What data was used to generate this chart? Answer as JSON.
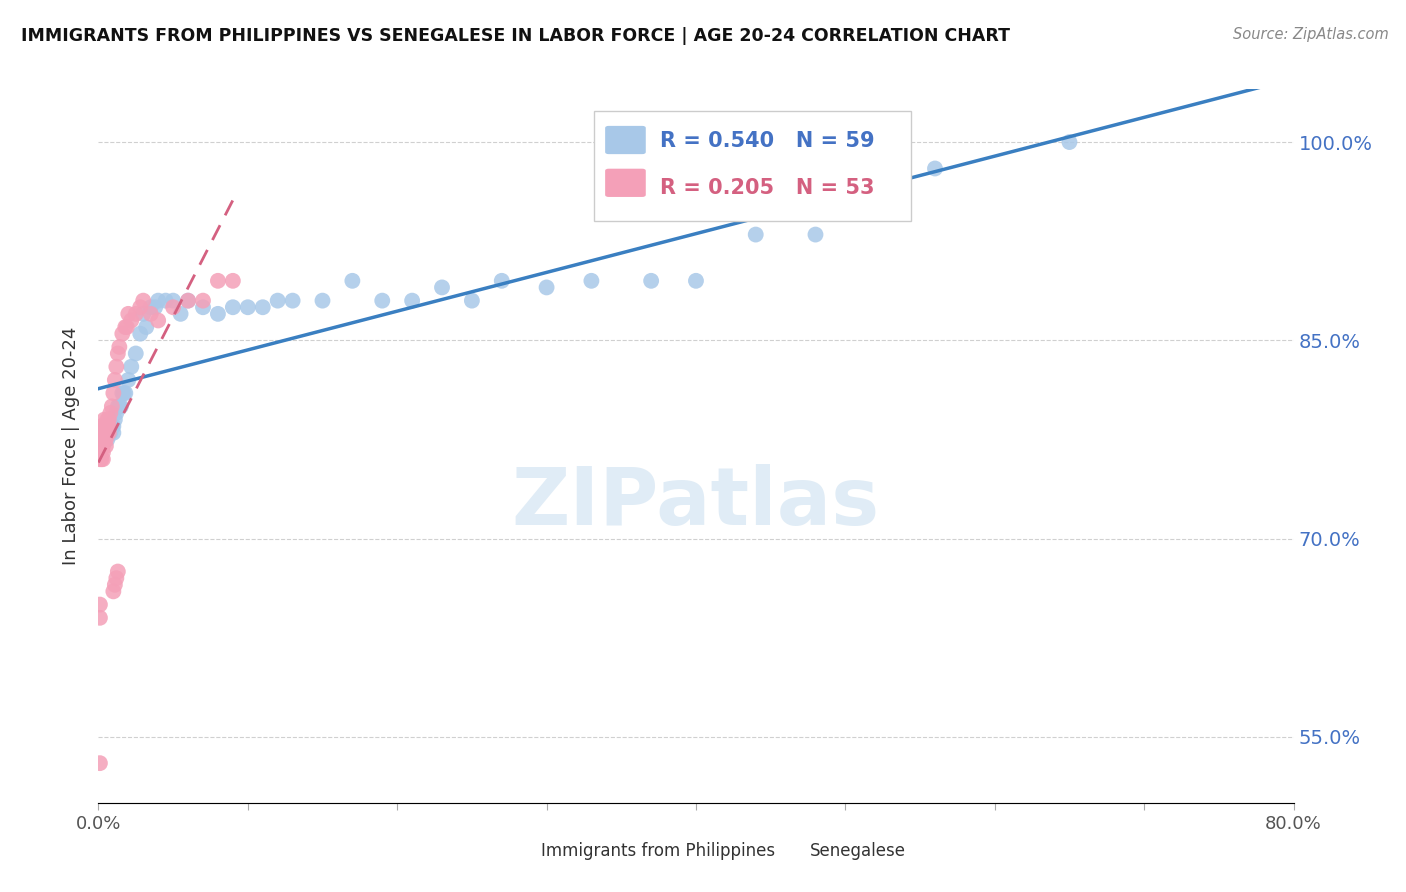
{
  "title": "IMMIGRANTS FROM PHILIPPINES VS SENEGALESE IN LABOR FORCE | AGE 20-24 CORRELATION CHART",
  "source": "Source: ZipAtlas.com",
  "ylabel": "In Labor Force | Age 20-24",
  "xlim": [
    0.0,
    0.8
  ],
  "ylim": [
    0.5,
    1.04
  ],
  "yticks": [
    0.55,
    0.7,
    0.85,
    1.0
  ],
  "ytick_labels": [
    "55.0%",
    "70.0%",
    "85.0%",
    "100.0%"
  ],
  "xticks": [
    0.0,
    0.1,
    0.2,
    0.3,
    0.4,
    0.5,
    0.6,
    0.7,
    0.8
  ],
  "xtick_labels": [
    "0.0%",
    "",
    "",
    "",
    "",
    "",
    "",
    "",
    "80.0%"
  ],
  "blue_color": "#a8c8e8",
  "pink_color": "#f4a0b8",
  "blue_line_color": "#3a7fc1",
  "pink_line_color": "#d46080",
  "R_blue": 0.54,
  "N_blue": 59,
  "R_pink": 0.205,
  "N_pink": 53,
  "watermark": "ZIPatlas",
  "legend_label_blue": "Immigrants from Philippines",
  "legend_label_pink": "Senegalese",
  "blue_x": [
    0.002,
    0.003,
    0.003,
    0.004,
    0.004,
    0.005,
    0.005,
    0.006,
    0.006,
    0.007,
    0.007,
    0.008,
    0.008,
    0.009,
    0.01,
    0.01,
    0.011,
    0.012,
    0.013,
    0.014,
    0.015,
    0.016,
    0.017,
    0.018,
    0.02,
    0.022,
    0.025,
    0.028,
    0.03,
    0.032,
    0.035,
    0.038,
    0.04,
    0.045,
    0.05,
    0.055,
    0.06,
    0.07,
    0.08,
    0.09,
    0.1,
    0.11,
    0.12,
    0.13,
    0.15,
    0.17,
    0.19,
    0.21,
    0.23,
    0.25,
    0.27,
    0.3,
    0.33,
    0.37,
    0.4,
    0.44,
    0.48,
    0.56,
    0.65
  ],
  "blue_y": [
    0.775,
    0.775,
    0.78,
    0.775,
    0.78,
    0.78,
    0.785,
    0.775,
    0.785,
    0.78,
    0.785,
    0.78,
    0.785,
    0.785,
    0.78,
    0.785,
    0.79,
    0.795,
    0.8,
    0.8,
    0.8,
    0.81,
    0.81,
    0.81,
    0.82,
    0.83,
    0.84,
    0.855,
    0.87,
    0.86,
    0.875,
    0.875,
    0.88,
    0.88,
    0.88,
    0.87,
    0.88,
    0.875,
    0.87,
    0.875,
    0.875,
    0.875,
    0.88,
    0.88,
    0.88,
    0.895,
    0.88,
    0.88,
    0.89,
    0.88,
    0.895,
    0.89,
    0.895,
    0.895,
    0.895,
    0.93,
    0.93,
    0.98,
    1.0
  ],
  "pink_x": [
    0.001,
    0.001,
    0.001,
    0.001,
    0.001,
    0.002,
    0.002,
    0.002,
    0.002,
    0.003,
    0.003,
    0.003,
    0.003,
    0.003,
    0.004,
    0.004,
    0.004,
    0.004,
    0.005,
    0.005,
    0.005,
    0.006,
    0.006,
    0.006,
    0.007,
    0.007,
    0.007,
    0.008,
    0.009,
    0.01,
    0.011,
    0.012,
    0.013,
    0.014,
    0.016,
    0.018,
    0.019,
    0.02,
    0.022,
    0.025,
    0.028,
    0.03,
    0.035,
    0.04,
    0.05,
    0.06,
    0.07,
    0.08,
    0.09,
    0.01,
    0.011,
    0.012,
    0.013
  ],
  "pink_y": [
    0.53,
    0.64,
    0.65,
    0.76,
    0.775,
    0.76,
    0.77,
    0.775,
    0.785,
    0.76,
    0.765,
    0.77,
    0.775,
    0.78,
    0.775,
    0.78,
    0.785,
    0.79,
    0.77,
    0.775,
    0.78,
    0.78,
    0.785,
    0.79,
    0.78,
    0.785,
    0.79,
    0.795,
    0.8,
    0.81,
    0.82,
    0.83,
    0.84,
    0.845,
    0.855,
    0.86,
    0.86,
    0.87,
    0.865,
    0.87,
    0.875,
    0.88,
    0.87,
    0.865,
    0.875,
    0.88,
    0.88,
    0.895,
    0.895,
    0.66,
    0.665,
    0.67,
    0.675
  ],
  "background_color": "#ffffff",
  "grid_color": "#d0d0d0"
}
